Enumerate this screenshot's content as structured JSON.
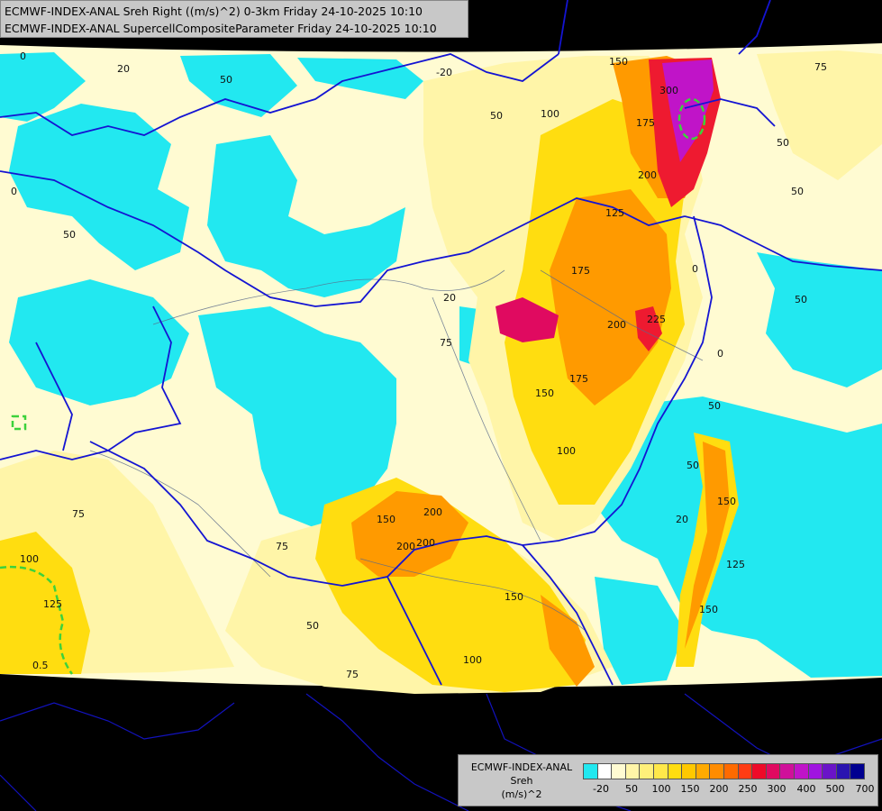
{
  "header": {
    "line1": "ECMWF-INDEX-ANAL Sreh Right ((m/s)^2) 0-3km Friday 24-10-2025 10:10",
    "line2": "ECMWF-INDEX-ANAL SupercellCompositeParameter Friday 24-10-2025 10:10"
  },
  "legend": {
    "model": "ECMWF-INDEX-ANAL",
    "param": "Sreh",
    "unit": "(m/s)^2",
    "colors": [
      "#22e8f0",
      "#ffffff",
      "#fffbd2",
      "#fff5a8",
      "#fff07a",
      "#ffe84a",
      "#ffdd10",
      "#ffc800",
      "#ffaa00",
      "#ff8c00",
      "#ff6a00",
      "#ff3c14",
      "#ee0a28",
      "#e00a60",
      "#d0109a",
      "#c014c8",
      "#a014e0",
      "#6a14c8",
      "#2a14b0",
      "#000090"
    ],
    "ticks": [
      "-20",
      "50",
      "100",
      "150",
      "200",
      "250",
      "300",
      "400",
      "500",
      "700"
    ]
  },
  "contour_labels": [
    "-20",
    "0",
    "0",
    "20",
    "20",
    "50",
    "50",
    "50",
    "50",
    "50",
    "50",
    "50",
    "75",
    "75",
    "75",
    "75",
    "100",
    "100",
    "100",
    "125",
    "125",
    "125",
    "150",
    "150",
    "150",
    "150",
    "175",
    "175",
    "175",
    "200",
    "200",
    "200",
    "200",
    "225",
    "300",
    "0.5",
    "0",
    "0",
    "20",
    "50",
    "50",
    "75",
    "100",
    "150",
    "150",
    "200"
  ],
  "colors": {
    "cyan": "#22e8f0",
    "pale": "#fffbd2",
    "light": "#fff5a8",
    "yellow": "#ffe84a",
    "gold": "#ffc800",
    "orange": "#ff9a00",
    "red": "#ee1a30",
    "magenta": "#c014c8",
    "border_blue": "#1414d2",
    "river": "#5a6a8a",
    "scp_green": "#3cd23c"
  }
}
